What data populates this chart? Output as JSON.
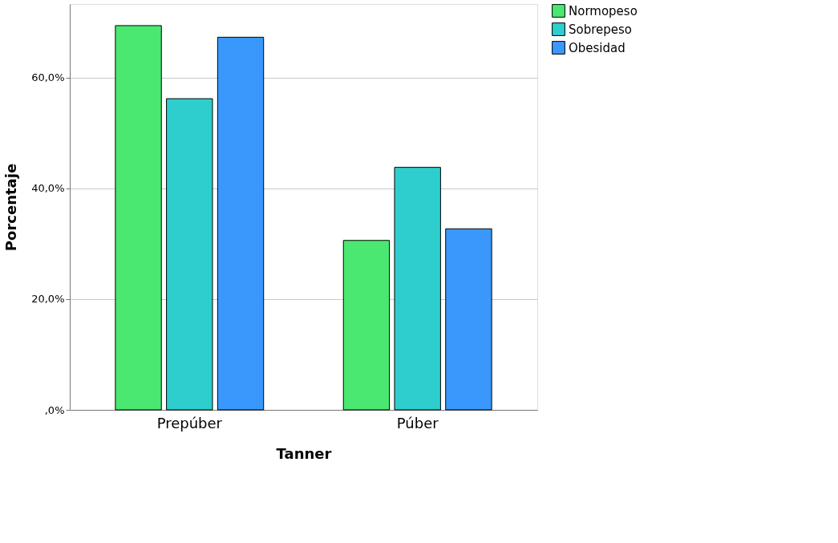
{
  "chart_data": {
    "type": "bar",
    "xlabel": "Tanner",
    "ylabel": "Porcentaje",
    "categories": [
      "Prepúber",
      "Púber"
    ],
    "series": [
      {
        "name": "Normopeso",
        "color": "#4ae870",
        "values": [
          69.4,
          30.6
        ]
      },
      {
        "name": "Sobrepeso",
        "color": "#2ecece",
        "values": [
          56.2,
          43.8
        ]
      },
      {
        "name": "Obesidad",
        "color": "#3a98fc",
        "values": [
          67.3,
          32.7
        ]
      }
    ],
    "ylim": [
      0,
      73.3
    ],
    "yticks": [
      {
        "value": 0,
        "label": ",0%"
      },
      {
        "value": 20,
        "label": "20,0%"
      },
      {
        "value": 40,
        "label": "40,0%"
      },
      {
        "value": 60,
        "label": "60,0%"
      }
    ],
    "grid": "y",
    "legend": "top right"
  }
}
